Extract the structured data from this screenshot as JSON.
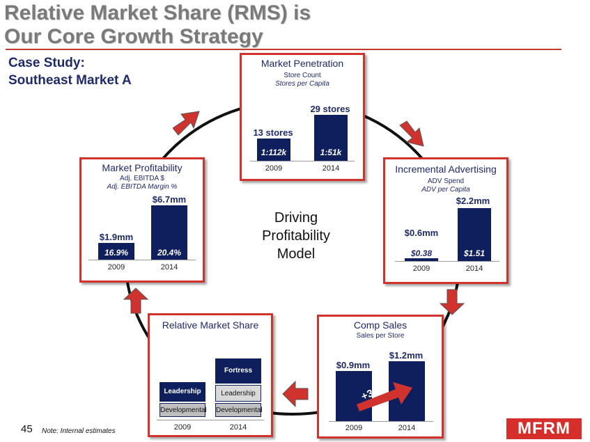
{
  "title": {
    "line1": "Relative Market Share (RMS) is",
    "line2": "Our Core Growth Strategy"
  },
  "case_study": {
    "line1": "Case Study:",
    "line2": "Southeast Market A"
  },
  "center_label": {
    "line1": "Driving",
    "line2": "Profitability",
    "line3": "Model"
  },
  "panels": {
    "penetration": {
      "title": "Market Penetration",
      "sub1": "Store Count",
      "sub2": "Stores per Capita",
      "bars": [
        {
          "year": "2009",
          "value_label": "13 stores",
          "inner_label": "1:112k",
          "value": 13
        },
        {
          "year": "2014",
          "value_label": "29 stores",
          "inner_label": "1:51k",
          "value": 29
        }
      ]
    },
    "advertising": {
      "title": "Incremental Advertising",
      "sub1": "ADV Spend",
      "sub2": "ADV per Capita",
      "bars": [
        {
          "year": "2009",
          "value_label": "$0.6mm",
          "inner_label": "$0.38",
          "value": 0.6
        },
        {
          "year": "2014",
          "value_label": "$2.2mm",
          "inner_label": "$1.51",
          "value": 2.2
        }
      ]
    },
    "comp_sales": {
      "title": "Comp Sales",
      "sub1": "Sales per Store",
      "growth_label": "+32%",
      "bars": [
        {
          "year": "2009",
          "value_label": "$0.9mm",
          "value": 0.9
        },
        {
          "year": "2014",
          "value_label": "$1.2mm",
          "value": 1.2
        }
      ]
    },
    "rms": {
      "title": "Relative Market Share",
      "years": [
        "2009",
        "2014"
      ],
      "col2009": {
        "top": "Leadership",
        "bottom": "Developmental"
      },
      "col2014": {
        "top": "Fortress",
        "middle": "Leadership",
        "bottom": "Developmental"
      }
    },
    "profitability": {
      "title": "Market Profitability",
      "sub1": "Adj. EBITDA $",
      "sub2": "Adj. EBITDA Margin %",
      "bars": [
        {
          "year": "2009",
          "value_label": "$1.9mm",
          "inner_label": "16.9%",
          "value": 1.9
        },
        {
          "year": "2014",
          "value_label": "$6.7mm",
          "inner_label": "20.4%",
          "value": 6.7
        }
      ]
    }
  },
  "footer": {
    "page_number": "45",
    "note": "Note: Internal estimates",
    "logo": "MFRM"
  },
  "colors": {
    "accent": "#d0332d",
    "bar": "#0f1f5e",
    "text": "#1f2a6b"
  }
}
